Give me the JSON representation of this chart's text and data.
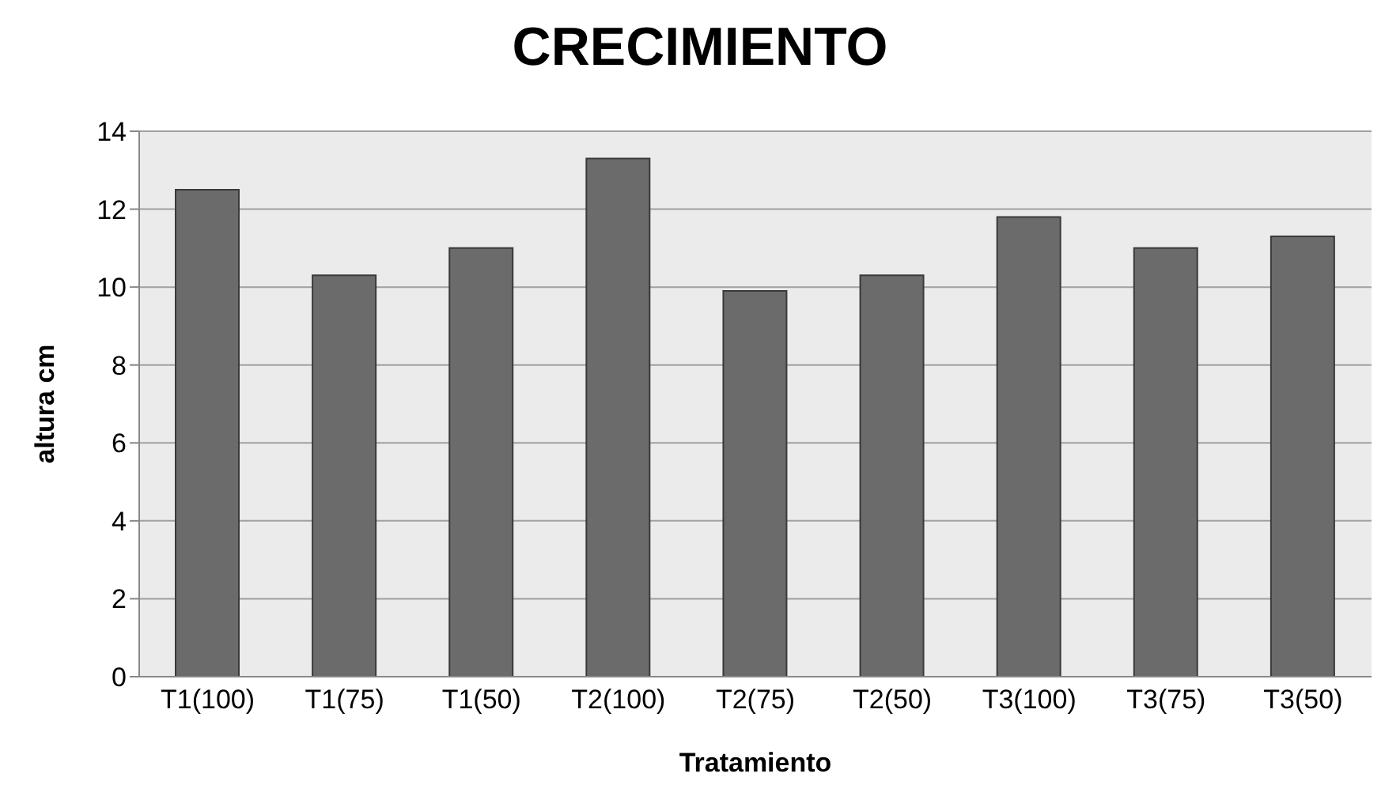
{
  "chart_data": {
    "type": "bar",
    "title": "CRECIMIENTO",
    "xlabel": "Tratamiento",
    "ylabel": "altura cm",
    "categories": [
      "T1(100)",
      "T1(75)",
      "T1(50)",
      "T2(100)",
      "T2(75)",
      "T2(50)",
      "T3(100)",
      "T3(75)",
      "T3(50)"
    ],
    "values": [
      12.5,
      10.3,
      11.0,
      13.3,
      9.9,
      10.3,
      11.8,
      11.0,
      11.3
    ],
    "color": "#6b6b6b",
    "ylim": [
      0,
      14
    ],
    "yticks": [
      0,
      2,
      4,
      6,
      8,
      10,
      12,
      14
    ],
    "grid": "y",
    "legend": false
  }
}
